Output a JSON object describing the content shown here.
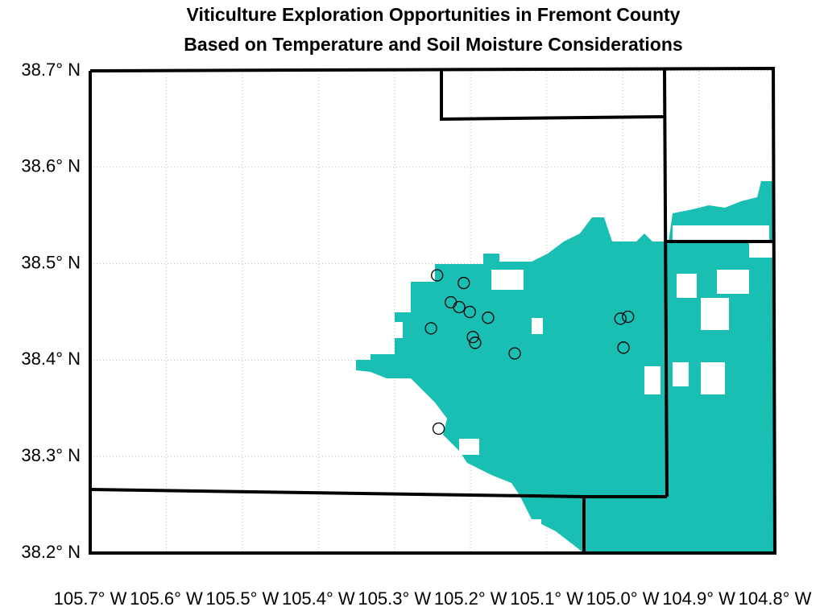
{
  "chart_data": {
    "type": "map",
    "title": [
      "Viticulture Exploration Opportunities in Fremont County",
      "Based on Temperature and Soil Moisture Considerations"
    ],
    "xlim": [
      105.7,
      104.8
    ],
    "ylim": [
      38.2,
      38.7
    ],
    "xticks": [
      {
        "value": 105.7,
        "label": "105.7° W"
      },
      {
        "value": 105.6,
        "label": "105.6° W"
      },
      {
        "value": 105.5,
        "label": "105.5° W"
      },
      {
        "value": 105.4,
        "label": "105.4° W"
      },
      {
        "value": 105.3,
        "label": "105.3° W"
      },
      {
        "value": 105.2,
        "label": "105.2° W"
      },
      {
        "value": 105.1,
        "label": "105.1° W"
      },
      {
        "value": 105.0,
        "label": "105.0° W"
      },
      {
        "value": 104.9,
        "label": "104.9° W"
      },
      {
        "value": 104.8,
        "label": "104.8° W"
      }
    ],
    "yticks": [
      {
        "value": 38.2,
        "label": "38.2° N"
      },
      {
        "value": 38.3,
        "label": "38.3° N"
      },
      {
        "value": 38.4,
        "label": "38.4° N"
      },
      {
        "value": 38.5,
        "label": "38.5° N"
      },
      {
        "value": 38.6,
        "label": "38.6° N"
      },
      {
        "value": 38.7,
        "label": "38.7° N"
      }
    ],
    "grid": true,
    "region_color": "#1abfb3",
    "x": [
      105.244,
      105.209,
      105.226,
      105.215,
      105.201,
      105.177,
      105.252,
      105.197,
      105.194,
      105.142,
      105.003,
      104.993,
      104.999,
      105.242
    ],
    "values": [
      38.488,
      38.48,
      38.46,
      38.455,
      38.45,
      38.444,
      38.433,
      38.424,
      38.418,
      38.407,
      38.443,
      38.445,
      38.413,
      38.329
    ]
  }
}
